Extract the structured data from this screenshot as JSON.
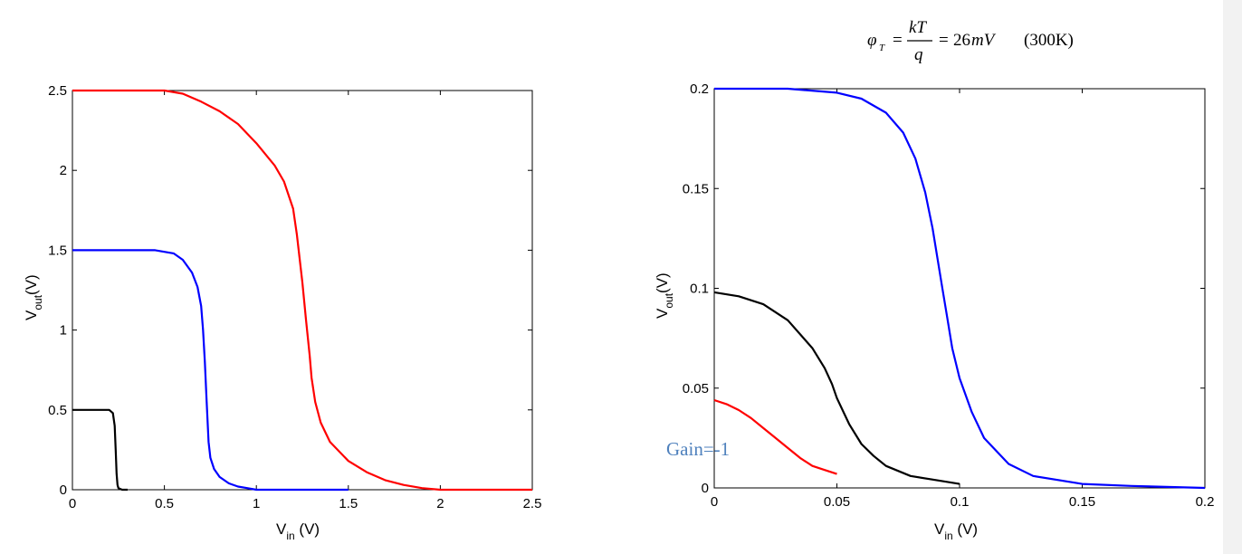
{
  "formula": {
    "phi": "φ",
    "sub_T": "T",
    "eq1": "=",
    "num": "kT",
    "den": "q",
    "eq2": "=",
    "value": "26",
    "unit": "mV",
    "temp": "(300K)"
  },
  "chart_data": [
    {
      "type": "line",
      "xlabel_main": "V",
      "xlabel_sub": "in",
      "xlabel_unit": " (V)",
      "ylabel_main": "V",
      "ylabel_sub": "out",
      "ylabel_unit": "(V)",
      "xlim": [
        0,
        2.5
      ],
      "ylim": [
        0,
        2.5
      ],
      "xticks": [
        "0",
        "0.5",
        "1",
        "1.5",
        "2",
        "2.5"
      ],
      "yticks": [
        "0",
        "0.5",
        "1",
        "1.5",
        "2",
        "2.5"
      ],
      "grid": false,
      "series": [
        {
          "color": "#ff0000",
          "x": [
            0,
            0.5,
            0.6,
            0.7,
            0.8,
            0.9,
            1.0,
            1.1,
            1.15,
            1.2,
            1.22,
            1.25,
            1.27,
            1.29,
            1.3,
            1.32,
            1.35,
            1.4,
            1.5,
            1.6,
            1.7,
            1.8,
            1.9,
            2.0,
            2.5
          ],
          "y": [
            2.5,
            2.5,
            2.48,
            2.43,
            2.37,
            2.29,
            2.17,
            2.03,
            1.93,
            1.76,
            1.6,
            1.3,
            1.06,
            0.84,
            0.7,
            0.55,
            0.42,
            0.3,
            0.18,
            0.11,
            0.06,
            0.03,
            0.01,
            0.0,
            0.0
          ]
        },
        {
          "color": "#0000ff",
          "x": [
            0,
            0.45,
            0.55,
            0.6,
            0.65,
            0.68,
            0.7,
            0.71,
            0.72,
            0.73,
            0.74,
            0.75,
            0.77,
            0.8,
            0.85,
            0.9,
            0.95,
            1.0,
            1.1,
            1.5
          ],
          "y": [
            1.5,
            1.5,
            1.48,
            1.44,
            1.36,
            1.27,
            1.15,
            1.0,
            0.8,
            0.55,
            0.3,
            0.2,
            0.13,
            0.08,
            0.04,
            0.02,
            0.01,
            0.0,
            0.0,
            0.0
          ]
        },
        {
          "color": "#000000",
          "x": [
            0,
            0.2,
            0.22,
            0.23,
            0.235,
            0.24,
            0.245,
            0.25,
            0.27,
            0.3
          ],
          "y": [
            0.5,
            0.5,
            0.48,
            0.4,
            0.25,
            0.1,
            0.03,
            0.01,
            0.0,
            0.0
          ]
        }
      ]
    },
    {
      "type": "line",
      "xlabel_main": "V",
      "xlabel_sub": "in",
      "xlabel_unit": " (V)",
      "ylabel_main": "V",
      "ylabel_sub": "out",
      "ylabel_unit": "(V)",
      "xlim": [
        0,
        0.2
      ],
      "ylim": [
        0,
        0.2
      ],
      "xticks": [
        "0",
        "0.05",
        "0.1",
        "0.15",
        "0.2"
      ],
      "yticks": [
        "0",
        "0.05",
        "0.1",
        "0.15",
        "0.2"
      ],
      "grid": false,
      "annotation": {
        "text": "Gain=-1",
        "color": "#4f81bd"
      },
      "series": [
        {
          "color": "#0000ff",
          "x": [
            0,
            0.03,
            0.05,
            0.06,
            0.07,
            0.077,
            0.082,
            0.086,
            0.089,
            0.091,
            0.093,
            0.095,
            0.097,
            0.1,
            0.105,
            0.11,
            0.12,
            0.13,
            0.15,
            0.17,
            0.2
          ],
          "y": [
            0.2,
            0.2,
            0.198,
            0.195,
            0.188,
            0.178,
            0.165,
            0.148,
            0.13,
            0.115,
            0.1,
            0.085,
            0.07,
            0.055,
            0.038,
            0.025,
            0.012,
            0.006,
            0.002,
            0.001,
            0.0
          ]
        },
        {
          "color": "#000000",
          "x": [
            0,
            0.01,
            0.02,
            0.03,
            0.04,
            0.045,
            0.048,
            0.05,
            0.055,
            0.06,
            0.065,
            0.07,
            0.08,
            0.09,
            0.1
          ],
          "y": [
            0.098,
            0.096,
            0.092,
            0.084,
            0.07,
            0.06,
            0.052,
            0.045,
            0.032,
            0.022,
            0.016,
            0.011,
            0.006,
            0.004,
            0.002
          ]
        },
        {
          "color": "#ff0000",
          "x": [
            0,
            0.005,
            0.01,
            0.015,
            0.02,
            0.025,
            0.03,
            0.035,
            0.04,
            0.045,
            0.05
          ],
          "y": [
            0.044,
            0.042,
            0.039,
            0.035,
            0.03,
            0.025,
            0.02,
            0.015,
            0.011,
            0.009,
            0.007
          ]
        }
      ]
    }
  ]
}
